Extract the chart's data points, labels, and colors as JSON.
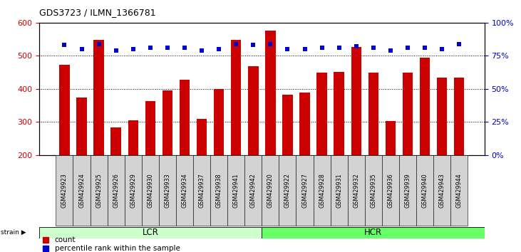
{
  "title": "GDS3723 / ILMN_1366781",
  "samples": [
    "GSM429923",
    "GSM429924",
    "GSM429925",
    "GSM429926",
    "GSM429929",
    "GSM429930",
    "GSM429933",
    "GSM429934",
    "GSM429937",
    "GSM429938",
    "GSM429941",
    "GSM429942",
    "GSM429920",
    "GSM429922",
    "GSM429927",
    "GSM429928",
    "GSM429931",
    "GSM429932",
    "GSM429935",
    "GSM429936",
    "GSM429939",
    "GSM429940",
    "GSM429943",
    "GSM429944"
  ],
  "counts": [
    473,
    374,
    549,
    283,
    305,
    362,
    395,
    428,
    310,
    400,
    547,
    468,
    577,
    383,
    389,
    450,
    452,
    527,
    450,
    303,
    450,
    495,
    435,
    435
  ],
  "percentile_ranks": [
    83,
    80,
    84,
    79,
    80,
    81,
    81,
    81,
    79,
    80,
    84,
    83,
    84,
    80,
    80,
    81,
    81,
    82,
    81,
    79,
    81,
    81,
    80,
    84
  ],
  "lcr_count": 12,
  "hcr_count": 12,
  "bar_color": "#cc0000",
  "dot_color": "#0000cc",
  "ylim_left": [
    200,
    600
  ],
  "ylim_right": [
    0,
    100
  ],
  "yticks_left": [
    200,
    300,
    400,
    500,
    600
  ],
  "yticks_right": [
    0,
    25,
    50,
    75,
    100
  ],
  "background_color": "#ffffff",
  "tick_area_color": "#d3d3d3",
  "group_lcr_color": "#ccffcc",
  "group_hcr_color": "#66ff66",
  "legend_count_label": "count",
  "legend_pct_label": "percentile rank within the sample"
}
